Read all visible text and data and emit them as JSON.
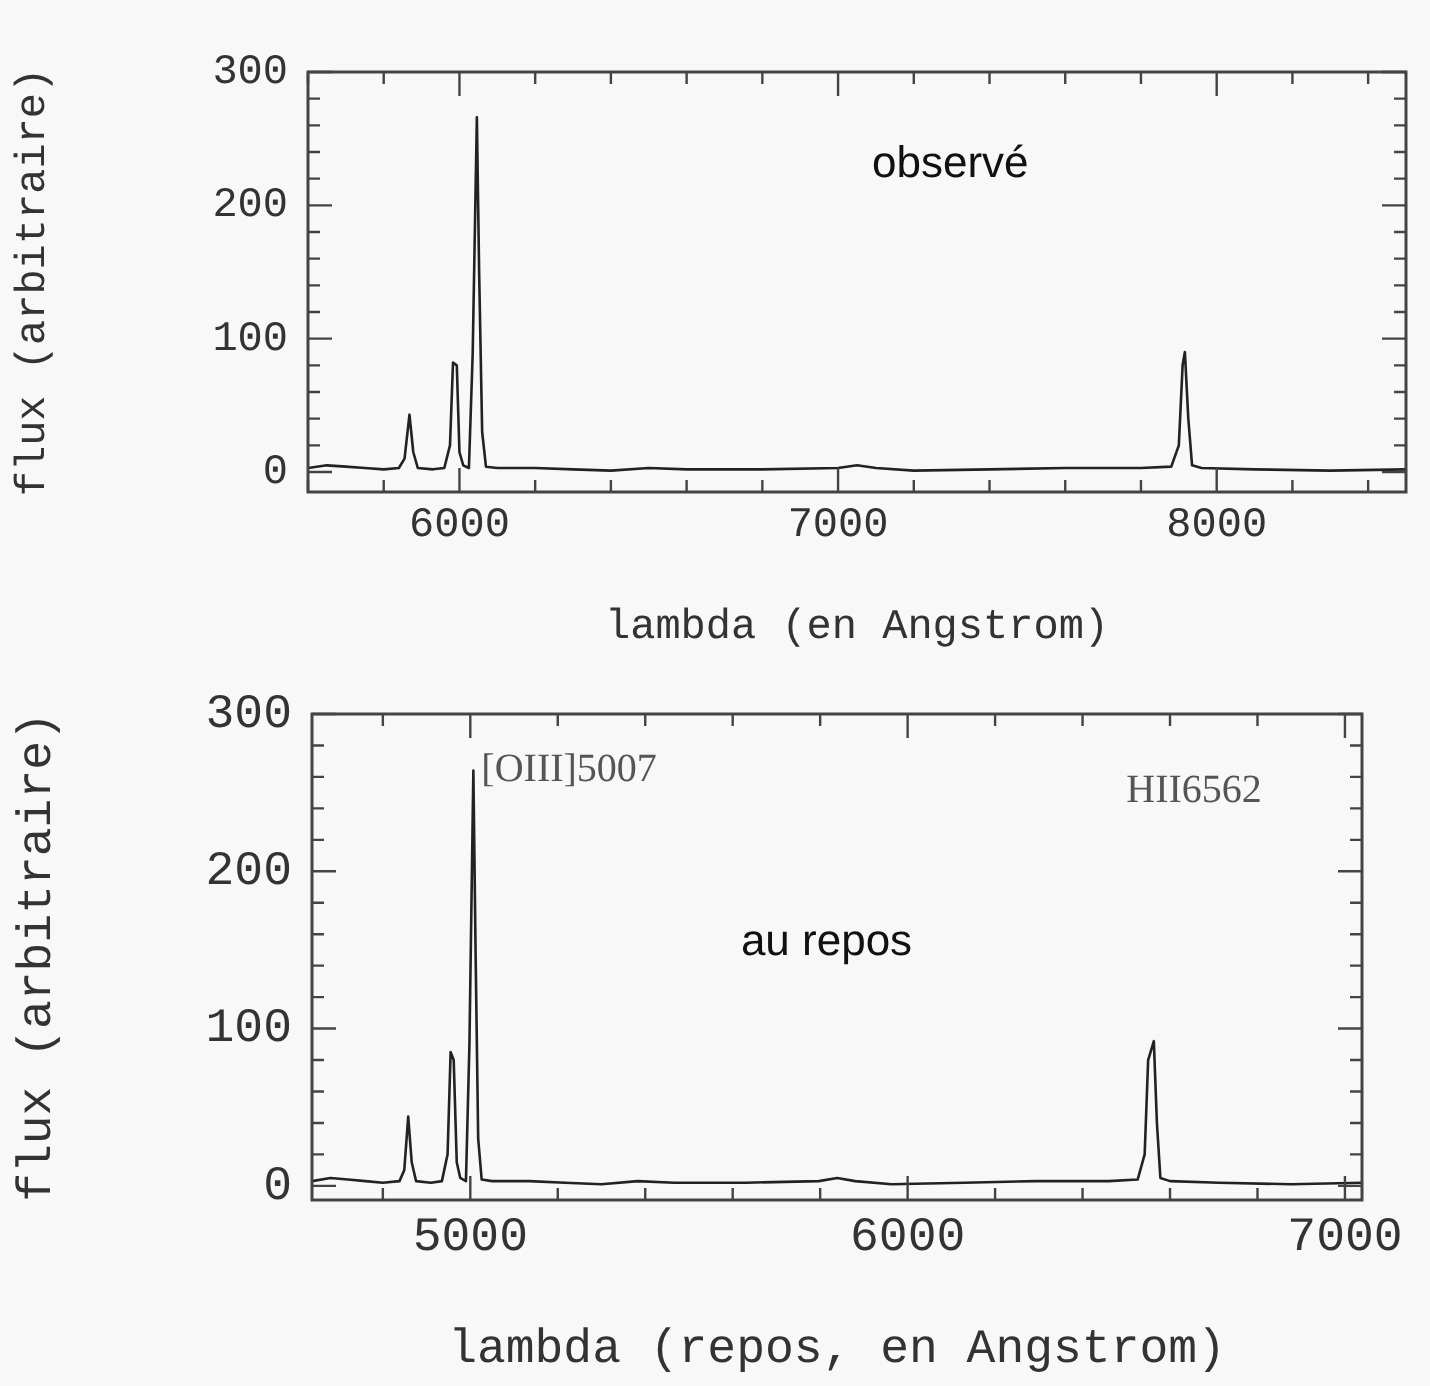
{
  "chart_data": [
    {
      "type": "line",
      "xlabel": "lambda (en Angstrom)",
      "ylabel": "flux (arbitraire)",
      "marker": "none",
      "annotations": [
        "observé"
      ],
      "xlim": [
        5600,
        8500
      ],
      "ylim": [
        -15,
        300
      ],
      "xticks": [
        {
          "value": 5600,
          "label": null
        },
        {
          "value": 5800,
          "label": null
        },
        6000,
        {
          "value": 6200,
          "label": null
        },
        {
          "value": 6400,
          "label": null
        },
        {
          "value": 6600,
          "label": null
        },
        {
          "value": 6800,
          "label": null
        },
        7000,
        {
          "value": 7200,
          "label": null
        },
        {
          "value": 7400,
          "label": null
        },
        {
          "value": 7600,
          "label": null
        },
        {
          "value": 7800,
          "label": null
        },
        8000,
        {
          "value": 8200,
          "label": null
        },
        {
          "value": 8400,
          "label": null
        }
      ],
      "yticks": [
        0,
        {
          "value": 20,
          "label": null
        },
        {
          "value": 40,
          "label": null
        },
        {
          "value": 60,
          "label": null
        },
        {
          "value": 80,
          "label": null
        },
        100,
        {
          "value": 120,
          "label": null
        },
        {
          "value": 140,
          "label": null
        },
        {
          "value": 160,
          "label": null
        },
        {
          "value": 180,
          "label": null
        },
        200,
        {
          "value": 220,
          "label": null
        },
        {
          "value": 240,
          "label": null
        },
        {
          "value": 260,
          "label": null
        },
        {
          "value": 280,
          "label": null
        },
        300
      ],
      "x": [
        5600,
        5650,
        5700,
        5750,
        5800,
        5840,
        5855,
        5868,
        5878,
        5890,
        5930,
        5960,
        5975,
        5983,
        5993,
        6000,
        6010,
        6025,
        6035,
        6046,
        6052,
        6060,
        6070,
        6100,
        6200,
        6300,
        6400,
        6500,
        6600,
        6800,
        7000,
        7050,
        7100,
        7200,
        7400,
        7600,
        7800,
        7880,
        7900,
        7910,
        7916,
        7925,
        7935,
        7960,
        8100,
        8300,
        8500
      ],
      "series": [
        {
          "color": "#222222",
          "values": [
            3,
            5,
            4,
            3,
            2,
            3,
            10,
            43,
            15,
            3,
            2,
            3,
            20,
            82,
            80,
            15,
            5,
            3,
            89,
            266,
            150,
            30,
            4,
            3,
            3,
            2,
            1,
            3,
            2,
            2,
            3,
            5,
            3,
            1,
            2,
            3,
            3,
            4,
            20,
            80,
            90,
            40,
            5,
            3,
            2,
            1,
            2
          ]
        }
      ]
    },
    {
      "type": "line",
      "xlabel": "lambda (repos, en Angstrom)",
      "ylabel": "flux (arbitraire)",
      "marker": "none",
      "annotations": [
        "au repos",
        {
          "text": "[OIII]5007",
          "x": 5007,
          "y": 264
        },
        "HII6562"
      ],
      "xlim": [
        4638,
        7039
      ],
      "ylim": [
        -9,
        300
      ],
      "xticks": [
        {
          "value": 4800,
          "label": null
        },
        5000,
        {
          "value": 5200,
          "label": null
        },
        {
          "value": 5400,
          "label": null
        },
        {
          "value": 5600,
          "label": null
        },
        {
          "value": 5800,
          "label": null
        },
        6000,
        {
          "value": 6200,
          "label": null
        },
        {
          "value": 6400,
          "label": null
        },
        {
          "value": 6600,
          "label": null
        },
        {
          "value": 6800,
          "label": null
        },
        7000
      ],
      "yticks": [
        0,
        {
          "value": 20,
          "label": null
        },
        {
          "value": 40,
          "label": null
        },
        {
          "value": 60,
          "label": null
        },
        {
          "value": 80,
          "label": null
        },
        100,
        {
          "value": 120,
          "label": null
        },
        {
          "value": 140,
          "label": null
        },
        {
          "value": 160,
          "label": null
        },
        {
          "value": 180,
          "label": null
        },
        200,
        {
          "value": 220,
          "label": null
        },
        {
          "value": 240,
          "label": null
        },
        {
          "value": 260,
          "label": null
        },
        {
          "value": 280,
          "label": null
        },
        300
      ],
      "x": [
        4638,
        4680,
        4720,
        4760,
        4800,
        4838,
        4849,
        4858,
        4866,
        4876,
        4910,
        4935,
        4948,
        4955,
        4962,
        4969,
        4977,
        4990,
        4998,
        5007,
        5012,
        5018,
        5026,
        5050,
        5135,
        5217,
        5300,
        5383,
        5466,
        5631,
        5797,
        5839,
        5880,
        5963,
        6129,
        6294,
        6460,
        6526,
        6542,
        6550,
        6563,
        6570,
        6578,
        6600,
        6712,
        6877,
        7039
      ],
      "series": [
        {
          "color": "#222222",
          "values": [
            3,
            5,
            4,
            3,
            2,
            3,
            10,
            44,
            15,
            3,
            2,
            3,
            20,
            85,
            80,
            15,
            5,
            3,
            90,
            264,
            150,
            30,
            4,
            3,
            3,
            2,
            1,
            3,
            2,
            2,
            3,
            5,
            3,
            1,
            2,
            3,
            3,
            4,
            20,
            80,
            92,
            40,
            5,
            3,
            2,
            1,
            2
          ]
        }
      ]
    }
  ]
}
